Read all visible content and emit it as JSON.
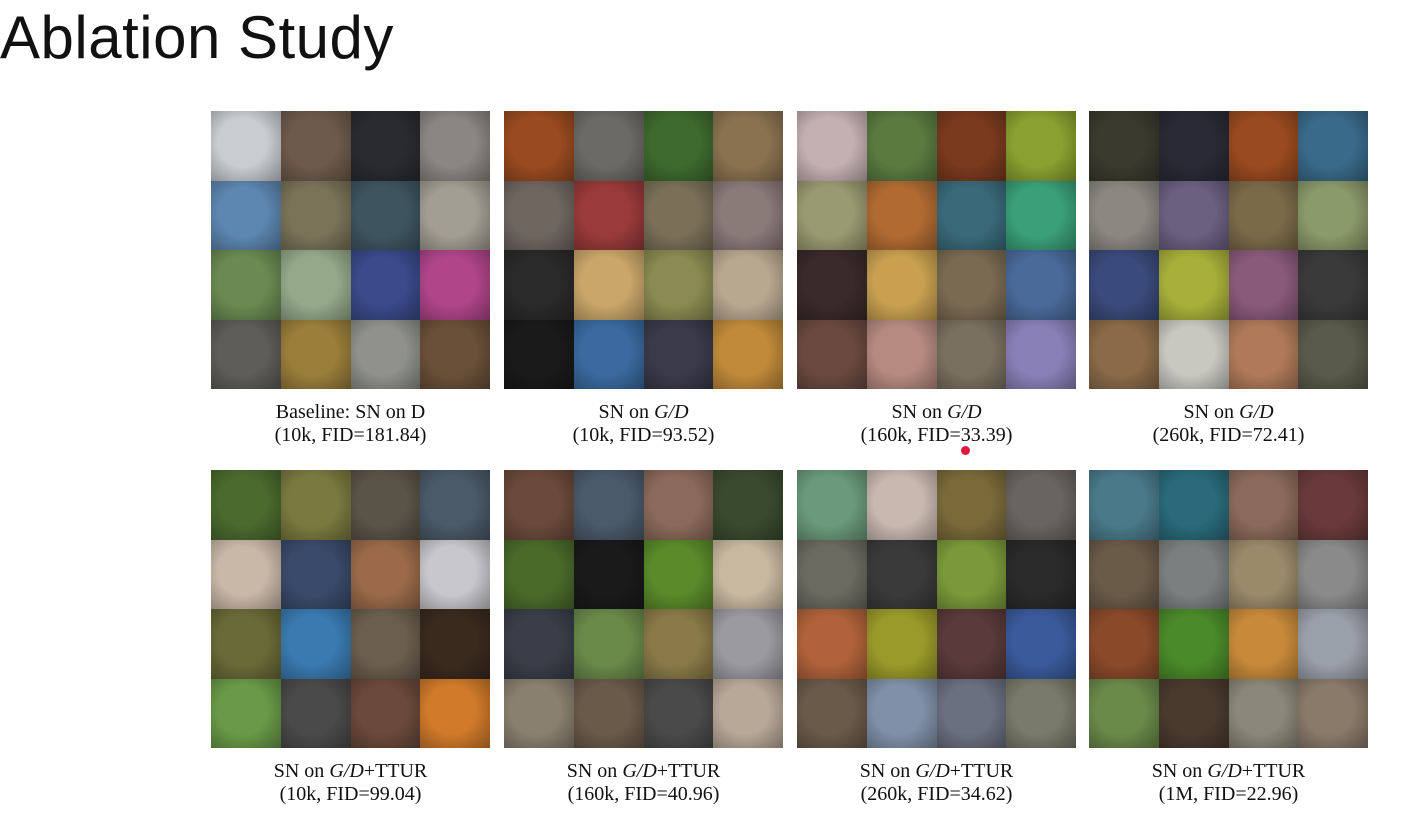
{
  "slide": {
    "title": "Ablation Study"
  },
  "panels": [
    {
      "line1_prefix": "Baseline: SN on D",
      "line1_italic": "",
      "line1_suffix": "",
      "line2": "(10k, FID=181.84)",
      "palette": [
        "#c9ccd0",
        "#6e5a4c",
        "#2a2b30",
        "#8a8682",
        "#5d86b0",
        "#7a7358",
        "#3e5560",
        "#a39e93",
        "#6a8a52",
        "#94a98a",
        "#3a4a8a",
        "#b0458a",
        "#5e5d58",
        "#9a7e3a",
        "#8f918a",
        "#6a5038"
      ]
    },
    {
      "line1_prefix": "SN on ",
      "line1_italic": "G/D",
      "line1_suffix": "",
      "line2": "(10k, FID=93.52)",
      "palette": [
        "#9a4a20",
        "#6c6a66",
        "#3e6a2e",
        "#8a7250",
        "#6f6660",
        "#9a3a3a",
        "#7a7058",
        "#8a7a78",
        "#2a2a2a",
        "#c9a66a",
        "#8a8a52",
        "#b9a890",
        "#1a1a1a",
        "#3a6aa0",
        "#3a3a4a",
        "#c08a3a"
      ]
    },
    {
      "line1_prefix": "SN on ",
      "line1_italic": "G/D",
      "line1_suffix": "",
      "line2": "(160k, FID=33.39)",
      "palette": [
        "#c4b0b2",
        "#5a7a40",
        "#7a3a1e",
        "#8aa030",
        "#9a9a72",
        "#b06a32",
        "#3a6a7a",
        "#3aa07a",
        "#3a2a2a",
        "#c8a050",
        "#7a6a52",
        "#4a6a9a",
        "#6a4a40",
        "#b58a80",
        "#7a7060",
        "#8a80b8"
      ]
    },
    {
      "line1_prefix": "SN on ",
      "line1_italic": "G/D",
      "line1_suffix": "",
      "line2": "(260k, FID=72.41)",
      "palette": [
        "#3a3a2e",
        "#2a2a36",
        "#9a4a20",
        "#3a6a8a",
        "#8a8880",
        "#6a6080",
        "#7a6a48",
        "#8a9a6a",
        "#3a4a7a",
        "#a8b03a",
        "#8a5a7a",
        "#3a3a3a",
        "#8a6a48",
        "#c8c8c0",
        "#b07a5a",
        "#5a5a4a"
      ]
    },
    {
      "line1_prefix": "SN on ",
      "line1_italic": "G/D",
      "line1_suffix": "+TTUR",
      "line2": "(10k, FID=99.04)",
      "palette": [
        "#4a6a2e",
        "#7a7a40",
        "#5a5448",
        "#4a5a68",
        "#c9b8a8",
        "#3a4a6a",
        "#9a6a4a",
        "#c8c8cc",
        "#6a6a38",
        "#3a7ab0",
        "#6a5e4e",
        "#3a2a1e",
        "#6a9a48",
        "#4a4a4a",
        "#6a4a3a",
        "#d07a2a"
      ]
    },
    {
      "line1_prefix": "SN on ",
      "line1_italic": "G/D",
      "line1_suffix": "+TTUR",
      "line2": "(160k, FID=40.96)",
      "palette": [
        "#6a4a3a",
        "#4a5a6a",
        "#8a6a5a",
        "#3a4a2e",
        "#4a6a2a",
        "#1a1a1a",
        "#5a8a2a",
        "#c8b8a0",
        "#3a3e48",
        "#6a8a4a",
        "#8a7a48",
        "#9a9aa0",
        "#8a8070",
        "#6a5a4a",
        "#4a4a4a",
        "#b8a898"
      ]
    },
    {
      "line1_prefix": "SN on ",
      "line1_italic": "G/D",
      "line1_suffix": "+TTUR",
      "line2": "(260k, FID=34.62)",
      "palette": [
        "#6a9a7a",
        "#c8b8b0",
        "#7a6a3a",
        "#6a6460",
        "#6a6a60",
        "#3a3a3a",
        "#7a9a3a",
        "#2a2a2a",
        "#b0623a",
        "#9a9a2a",
        "#5a3a3a",
        "#3a5a9a",
        "#6a5a4a",
        "#8090a8",
        "#6a7080",
        "#7a7a6a"
      ]
    },
    {
      "line1_prefix": "SN on ",
      "line1_italic": "G/D",
      "line1_suffix": "+TTUR",
      "line2": "(1M, FID=22.96)",
      "palette": [
        "#4a7a8a",
        "#2a6a7a",
        "#8a6a5a",
        "#6a3a3a",
        "#6a5a48",
        "#7a8080",
        "#9a8a6a",
        "#8a8a8a",
        "#8a4a2a",
        "#4a8a2a",
        "#c88a3a",
        "#9aa0aa",
        "#6a8a4a",
        "#4a3a2e",
        "#8a8878",
        "#8a7a6a"
      ]
    }
  ]
}
